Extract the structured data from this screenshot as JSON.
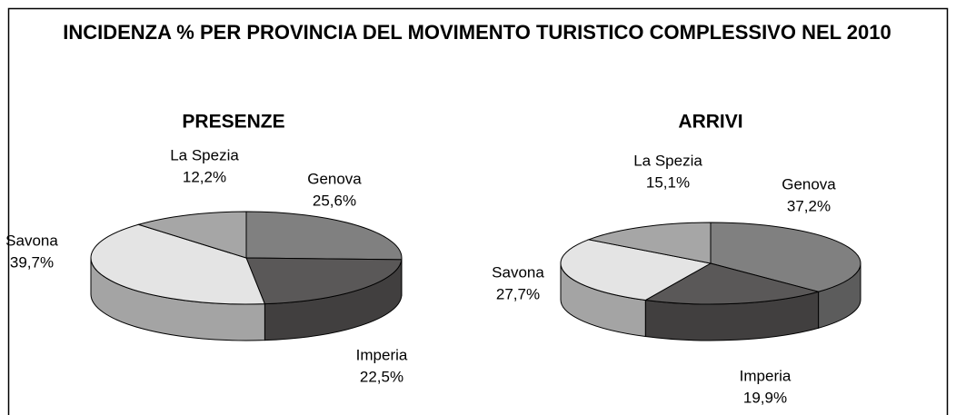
{
  "title": "INCIDENZA % PER PROVINCIA DEL MOVIMENTO TURISTICO COMPLESSIVO NEL 2010",
  "chart_data": [
    {
      "type": "pie",
      "title": "PRESENZE",
      "categories": [
        "Genova",
        "Imperia",
        "Savona",
        "La Spezia"
      ],
      "values": [
        25.6,
        22.5,
        39.7,
        12.2
      ],
      "value_labels": [
        "25,6%",
        "22,5%",
        "39,7%",
        "12,2%"
      ],
      "colors": [
        "#808080",
        "#5a5858",
        "#e4e4e4",
        "#a6a6a6"
      ]
    },
    {
      "type": "pie",
      "title": "ARRIVI",
      "categories": [
        "Genova",
        "Imperia",
        "Savona",
        "La Spezia"
      ],
      "values": [
        37.2,
        19.9,
        27.7,
        15.1
      ],
      "value_labels": [
        "37,2%",
        "19,9%",
        "27,7%",
        "15,1%"
      ],
      "colors": [
        "#808080",
        "#5a5858",
        "#e4e4e4",
        "#a6a6a6"
      ]
    }
  ]
}
